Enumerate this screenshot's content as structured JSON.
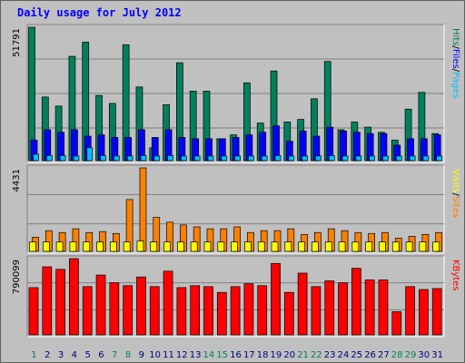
{
  "title": "Daily usage for July 2012",
  "colors": {
    "hits": "#00805c",
    "files": "#0000ff",
    "pages": "#00c0ff",
    "visits": "#ffff00",
    "sites": "#ff8000",
    "kbytes": "#ff0000",
    "weekend": "#00805c",
    "weekday": "#000080"
  },
  "chart_data": [
    {
      "type": "bar",
      "panel": "hits-files-pages",
      "y_max_label": "51791",
      "y_max": 51791,
      "side_label": {
        "hits": "Hits",
        "files": "Files",
        "pages": "Pages",
        "sep": "/"
      },
      "series": [
        {
          "name": "Hits",
          "color_key": "hits",
          "values": [
            51791,
            24700,
            21200,
            40500,
            46000,
            25300,
            22200,
            45000,
            28600,
            5000,
            21700,
            38000,
            27000,
            27000,
            8500,
            10000,
            30200,
            14600,
            34800,
            15000,
            16000,
            24000,
            38500,
            12000,
            15000,
            13000,
            11000,
            8000,
            20000,
            26500,
            10500
          ]
        },
        {
          "name": "Files",
          "color_key": "files",
          "values": [
            8000,
            12000,
            11000,
            12000,
            9500,
            10000,
            9000,
            9000,
            12000,
            9000,
            12000,
            9000,
            8500,
            8500,
            8500,
            9000,
            10000,
            11000,
            13500,
            7500,
            11500,
            9500,
            13000,
            11500,
            11000,
            10500,
            10500,
            6000,
            8500,
            8500,
            10000
          ]
        },
        {
          "name": "Pages",
          "color_key": "pages",
          "values": [
            2500,
            2000,
            2000,
            1800,
            5000,
            2000,
            1800,
            1800,
            2000,
            1800,
            2000,
            1800,
            1800,
            1800,
            1800,
            1800,
            1800,
            1800,
            2000,
            1800,
            1800,
            1800,
            2000,
            1800,
            1800,
            1800,
            1800,
            1800,
            1800,
            1800,
            1800
          ]
        }
      ]
    },
    {
      "type": "bar",
      "panel": "visits-sites",
      "y_max_label": "4431",
      "y_max": 4431,
      "side_label": {
        "sites": "Sites",
        "visits": "Visits",
        "sep": "/"
      },
      "series": [
        {
          "name": "Visits",
          "color_key": "visits",
          "values": [
            500,
            500,
            500,
            500,
            500,
            500,
            500,
            500,
            550,
            500,
            500,
            500,
            500,
            500,
            500,
            500,
            500,
            500,
            500,
            500,
            500,
            500,
            500,
            500,
            500,
            500,
            500,
            500,
            500,
            500,
            500
          ]
        },
        {
          "name": "Sites",
          "color_key": "sites",
          "values": [
            750,
            1100,
            1000,
            1200,
            1000,
            1050,
            950,
            2750,
            4431,
            1800,
            1550,
            1400,
            1300,
            1200,
            1200,
            1300,
            1000,
            1100,
            1100,
            1200,
            900,
            1000,
            1200,
            1100,
            1000,
            950,
            1000,
            700,
            800,
            900,
            1000
          ]
        }
      ]
    },
    {
      "type": "bar",
      "panel": "kbytes",
      "y_max_label": "790099",
      "y_max": 790099,
      "side_label": {
        "kbytes": "KBytes"
      },
      "series": [
        {
          "name": "KBytes",
          "color_key": "kbytes",
          "values": [
            490000,
            705000,
            679000,
            790099,
            500000,
            620000,
            540000,
            510000,
            600000,
            500000,
            660000,
            490000,
            510000,
            500000,
            440000,
            500000,
            530000,
            510000,
            740000,
            440000,
            640000,
            500000,
            560000,
            540000,
            690000,
            570000,
            570000,
            240000,
            500000,
            470000,
            480000
          ]
        }
      ]
    }
  ],
  "x_labels": [
    "1",
    "2",
    "3",
    "4",
    "5",
    "6",
    "7",
    "8",
    "9",
    "10",
    "11",
    "12",
    "13",
    "14",
    "15",
    "16",
    "17",
    "18",
    "19",
    "20",
    "21",
    "22",
    "23",
    "24",
    "25",
    "26",
    "27",
    "28",
    "29",
    "30",
    "31"
  ],
  "weekend_days": [
    1,
    7,
    8,
    14,
    15,
    21,
    22,
    28,
    29
  ]
}
